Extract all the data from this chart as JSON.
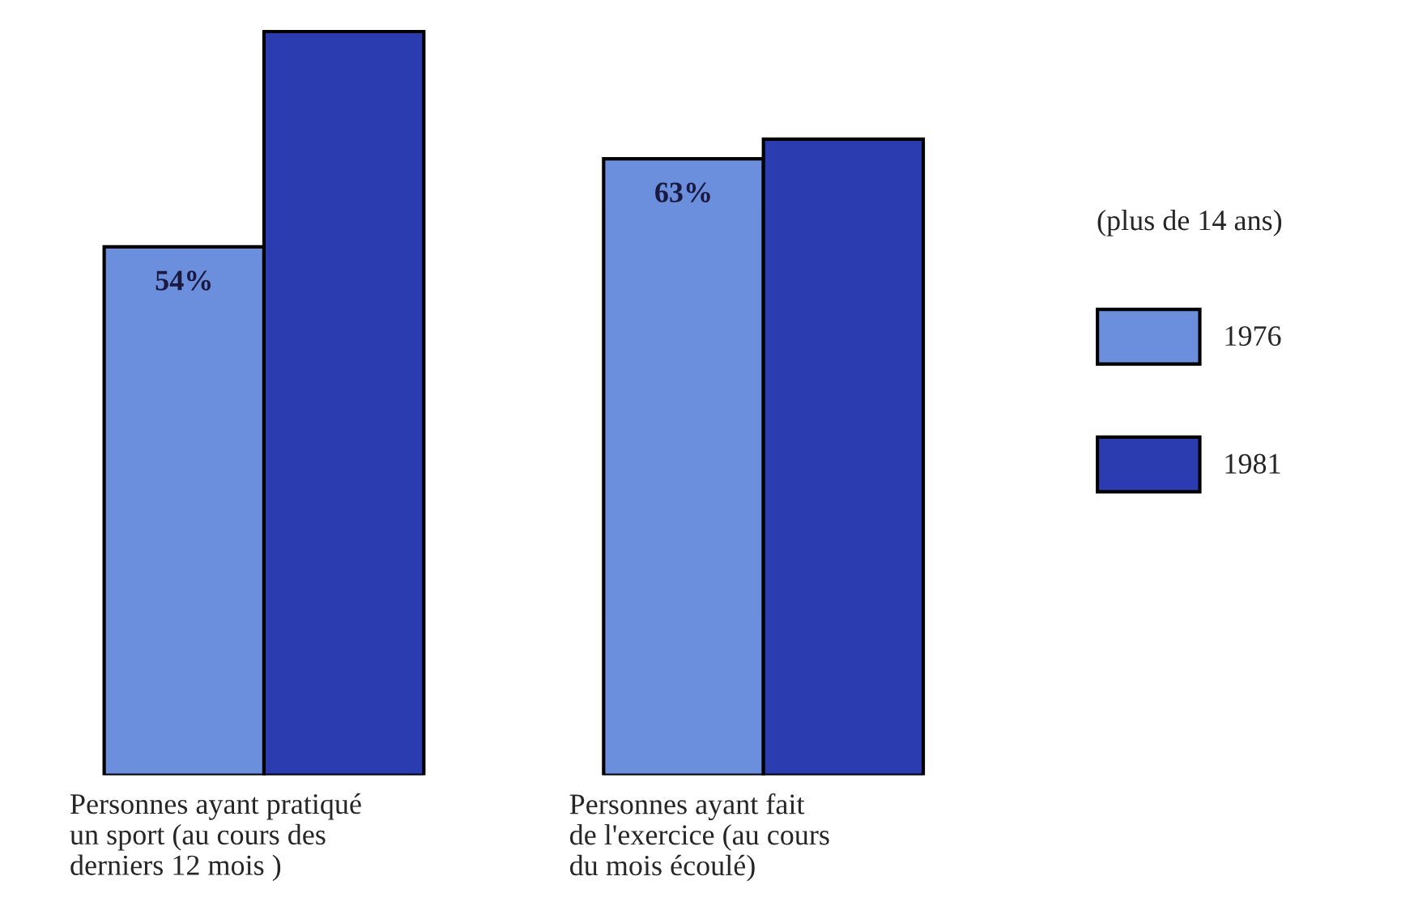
{
  "chart_data": {
    "type": "bar",
    "categories": [
      "Personnes ayant pratiqué\nun sport (au cours des\nderniers 12 mois )",
      "Personnes ayant fait\nde l'exercice (au cours\ndu mois écoulé)"
    ],
    "series": [
      {
        "name": "1976",
        "color": "#6b8fdc",
        "values": [
          54,
          63
        ],
        "value_labels": [
          "54%",
          "63%"
        ]
      },
      {
        "name": "1981",
        "color": "#2a3cb0",
        "values": [
          76,
          65
        ],
        "value_labels": [
          null,
          null
        ]
      }
    ],
    "legend": "right",
    "legend_title": "(plus de 14 ans)",
    "grid": false,
    "tick_labels": "x"
  }
}
